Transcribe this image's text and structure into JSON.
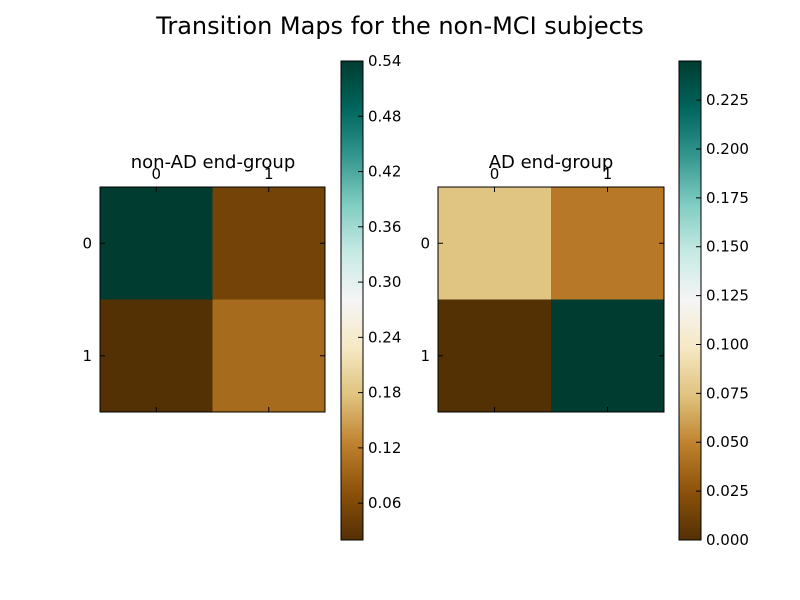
{
  "figure": {
    "title": "Transition Maps for the non-MCI subjects"
  },
  "colormap": {
    "name": "BrBG",
    "stops": [
      "#543005",
      "#8c510a",
      "#bf812d",
      "#dfc27d",
      "#f6e8c3",
      "#f5f5f5",
      "#c7eae5",
      "#80cdc1",
      "#35978f",
      "#01665e",
      "#003c30"
    ]
  },
  "chart_data": [
    {
      "type": "heatmap",
      "title": "non-AD end-group",
      "xlabel": "",
      "ylabel": "",
      "x_ticks": [
        "0",
        "1"
      ],
      "y_ticks": [
        "0",
        "1"
      ],
      "matrix": [
        [
          0.54,
          0.05
        ],
        [
          0.02,
          0.1
        ]
      ],
      "color_range": [
        0.02,
        0.54
      ],
      "colorbar_ticks": [
        "0.06",
        "0.12",
        "0.18",
        "0.24",
        "0.30",
        "0.36",
        "0.42",
        "0.48",
        "0.54"
      ],
      "colorbar_tick_values": [
        0.06,
        0.12,
        0.18,
        0.24,
        0.3,
        0.36,
        0.42,
        0.48,
        0.54
      ]
    },
    {
      "type": "heatmap",
      "title": "AD end-group",
      "xlabel": "",
      "ylabel": "",
      "x_ticks": [
        "0",
        "1"
      ],
      "y_ticks": [
        "0",
        "1"
      ],
      "matrix": [
        [
          0.075,
          0.045
        ],
        [
          0.0,
          0.245
        ]
      ],
      "color_range": [
        0.0,
        0.245
      ],
      "colorbar_ticks": [
        "0.000",
        "0.025",
        "0.050",
        "0.075",
        "0.100",
        "0.125",
        "0.150",
        "0.175",
        "0.200",
        "0.225"
      ],
      "colorbar_tick_values": [
        0.0,
        0.025,
        0.05,
        0.075,
        0.1,
        0.125,
        0.15,
        0.175,
        0.2,
        0.225
      ]
    }
  ]
}
